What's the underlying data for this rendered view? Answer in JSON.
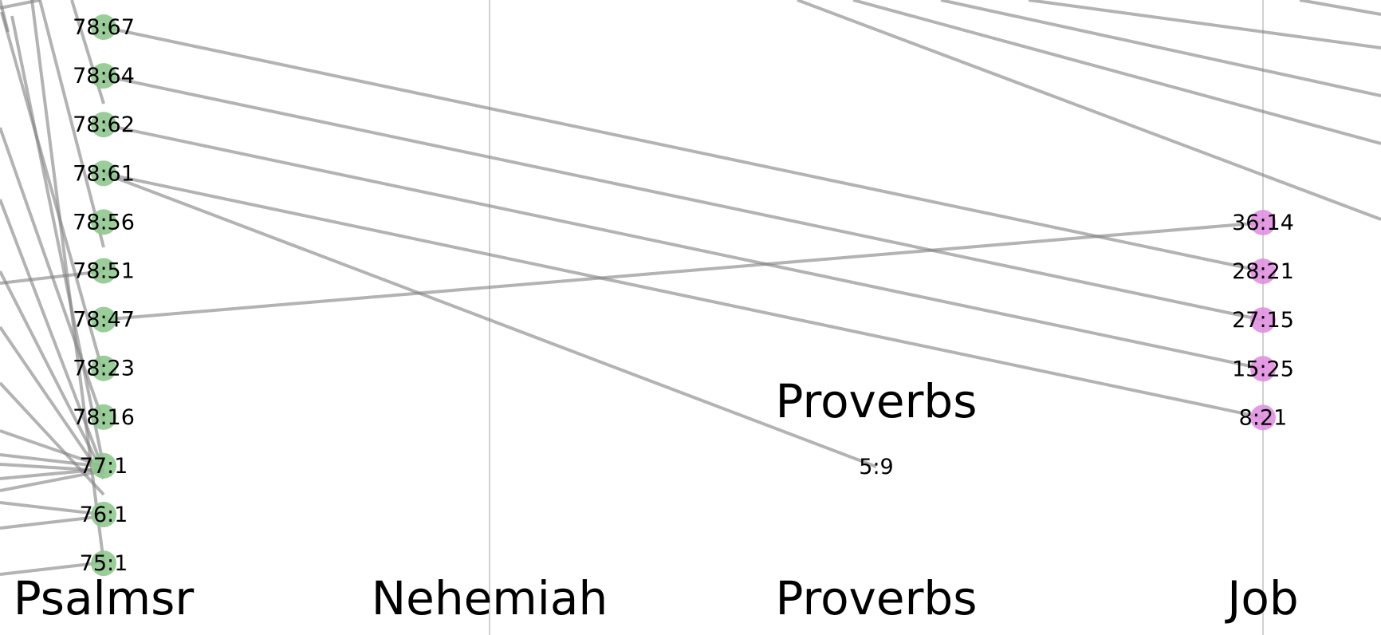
{
  "colors": {
    "background": "#ffffff",
    "axis_line": "#c0c0c0",
    "link": "#808080",
    "psalms_node": "#90c890",
    "job_node": "#e090e0"
  },
  "columns": [
    {
      "id": "psalms",
      "label": "Psalmsr"
    },
    {
      "id": "nehemiah",
      "label": "Nehemiah"
    },
    {
      "id": "proverbs",
      "label": "Proverbs"
    },
    {
      "id": "job",
      "label": "Job"
    }
  ],
  "floating_label": "Proverbs",
  "psalms_nodes": [
    "78:67",
    "78:64",
    "78:62",
    "78:61",
    "78:56",
    "78:51",
    "78:47",
    "78:23",
    "78:16",
    "77:1",
    "76:1",
    "75:1"
  ],
  "job_nodes": [
    "36:14",
    "28:21",
    "27:15",
    "15:25",
    "8:21"
  ],
  "proverbs_nodes": [
    "5:9"
  ],
  "links": [
    {
      "from": "78:67",
      "to": "28:21"
    },
    {
      "from": "78:64",
      "to": "27:15"
    },
    {
      "from": "78:62",
      "to": "15:25"
    },
    {
      "from": "78:61",
      "to": "8:21"
    },
    {
      "from": "78:61",
      "to": "5:9"
    },
    {
      "from": "78:47",
      "to": "36:14"
    }
  ]
}
